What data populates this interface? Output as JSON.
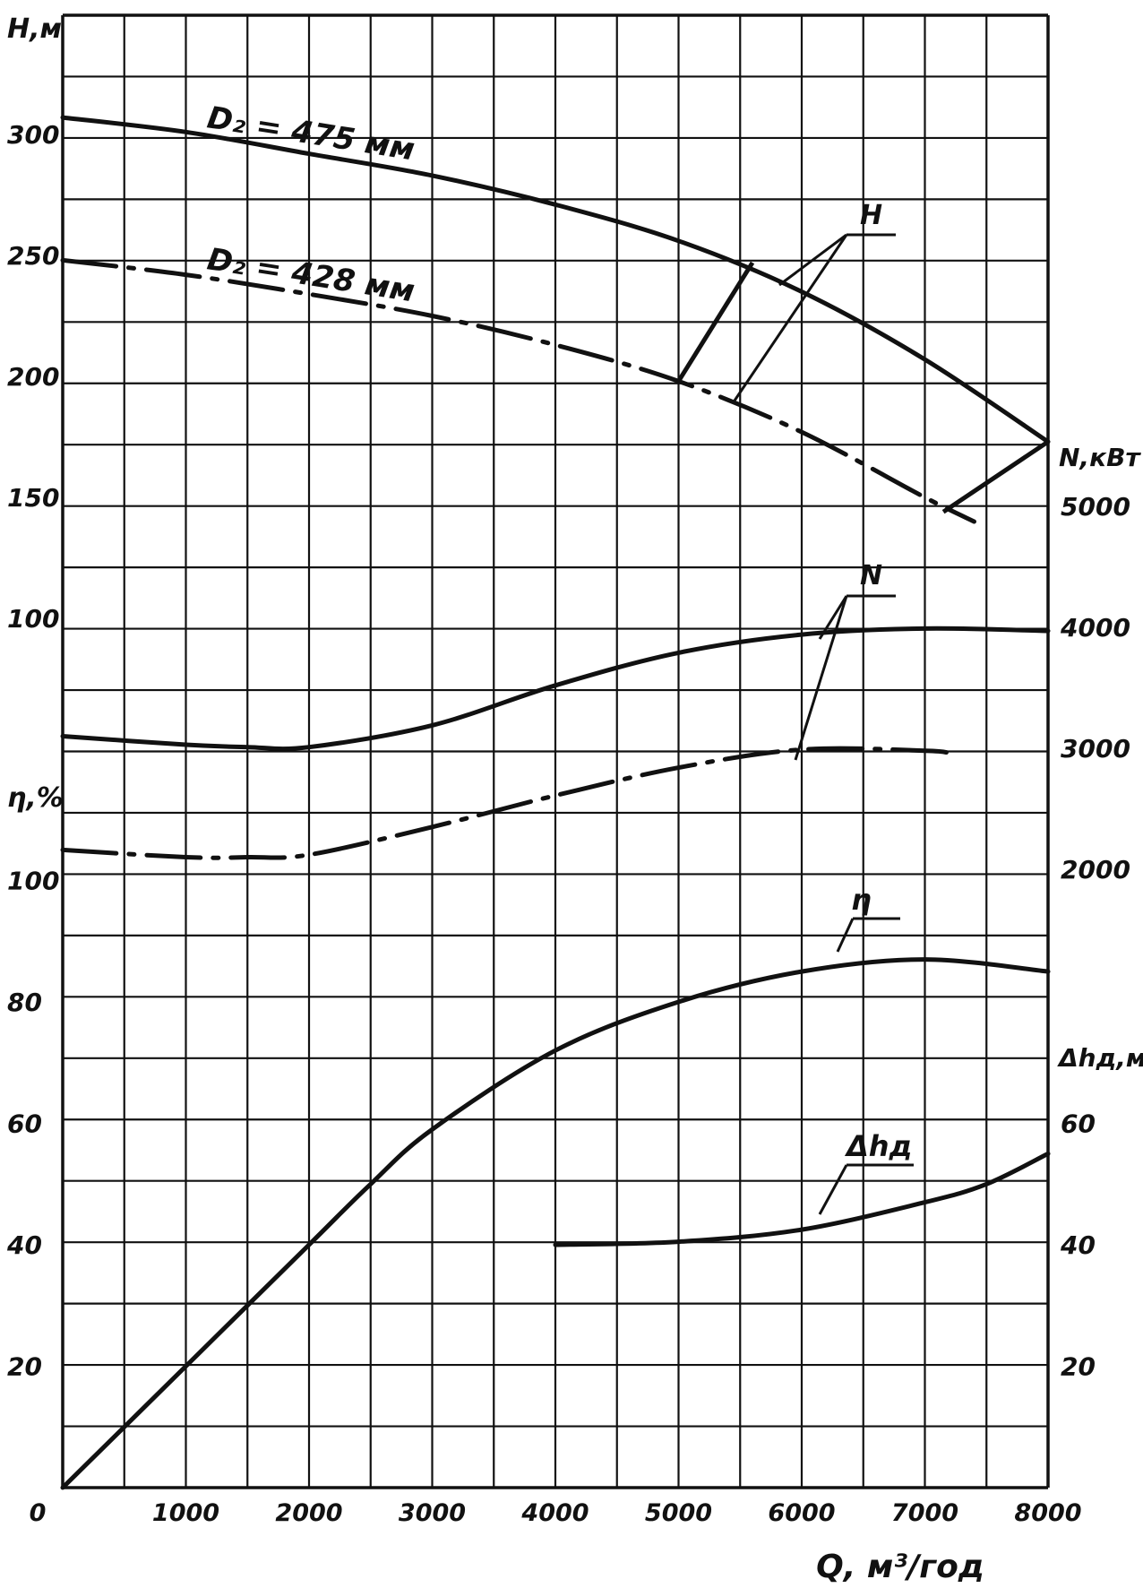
{
  "chart_data": {
    "type": "line",
    "colors": {
      "ink": "#111111",
      "background": "#ffffff"
    },
    "grid": true,
    "x_axis": {
      "label": "Q, м³/год",
      "range": [
        0,
        8000
      ],
      "ticks": [
        0,
        1000,
        2000,
        3000,
        4000,
        5000,
        6000,
        7000,
        8000
      ],
      "tick_labels": [
        "0",
        "1000",
        "2000",
        "3000",
        "4000",
        "5000",
        "6000",
        "7000",
        "8000"
      ]
    },
    "y_left_top": {
      "label": "H,м",
      "range": [
        0,
        340
      ],
      "tick_labels": [
        "300",
        "250",
        "200",
        "150",
        "100"
      ]
    },
    "y_left_bottom": {
      "label": "η,%",
      "range": [
        0,
        110
      ],
      "tick_labels": [
        "100",
        "80",
        "60",
        "40",
        "20"
      ]
    },
    "y_right_power": {
      "label": "N,кВт",
      "tick_labels": [
        "5000",
        "4000",
        "3000",
        "2000"
      ]
    },
    "y_right_npsh": {
      "label": "Δhд,м",
      "tick_labels": [
        "60",
        "40",
        "20"
      ]
    },
    "annotations": {
      "H_475": "D₂ = 475 мм",
      "H_428": "D₂ = 428 мм",
      "H": "H",
      "N": "N",
      "eta": "η",
      "dh": "Δhд"
    },
    "series": [
      {
        "name": "H, D₂ = 475 мм",
        "axis": "H",
        "style": "solid",
        "x": [
          0,
          1000,
          2000,
          3000,
          4000,
          5000,
          6000,
          7000,
          8000
        ],
        "y": [
          307,
          301,
          292,
          283,
          271,
          256,
          235,
          207,
          173
        ]
      },
      {
        "name": "H, D₂ = 428 мм",
        "axis": "H",
        "style": "dashdot",
        "x": [
          0,
          1000,
          2000,
          3000,
          4000,
          5000,
          6000,
          7000,
          7400
        ],
        "y": [
          248,
          242,
          234,
          225,
          213,
          198,
          177,
          150,
          140
        ]
      },
      {
        "name": "N, D₂ = 475 мм",
        "axis": "N",
        "style": "solid",
        "x": [
          0,
          1000,
          1500,
          2000,
          3000,
          4000,
          5000,
          6000,
          7000,
          8000
        ],
        "y": [
          3100,
          3030,
          3010,
          3010,
          3190,
          3520,
          3790,
          3940,
          3990,
          3970
        ]
      },
      {
        "name": "N, D₂ = 428 мм",
        "axis": "N",
        "style": "dashdot",
        "x": [
          0,
          1000,
          1500,
          2000,
          3000,
          4000,
          5000,
          6000,
          7000,
          7200
        ],
        "y": [
          2160,
          2100,
          2100,
          2120,
          2350,
          2610,
          2840,
          2990,
          2980,
          2960
        ]
      },
      {
        "name": "η",
        "axis": "eta",
        "style": "solid",
        "x": [
          0,
          1000,
          2000,
          2500,
          3000,
          4000,
          5000,
          6000,
          7000,
          8000
        ],
        "y": [
          0,
          20,
          40,
          50,
          59,
          72,
          80,
          85,
          87,
          85
        ]
      },
      {
        "name": "Δhд",
        "axis": "dh",
        "style": "solid",
        "x": [
          4000,
          5000,
          6000,
          7000,
          7500,
          8000
        ],
        "y": [
          40,
          40.5,
          42.5,
          47,
          50,
          55
        ]
      }
    ]
  }
}
